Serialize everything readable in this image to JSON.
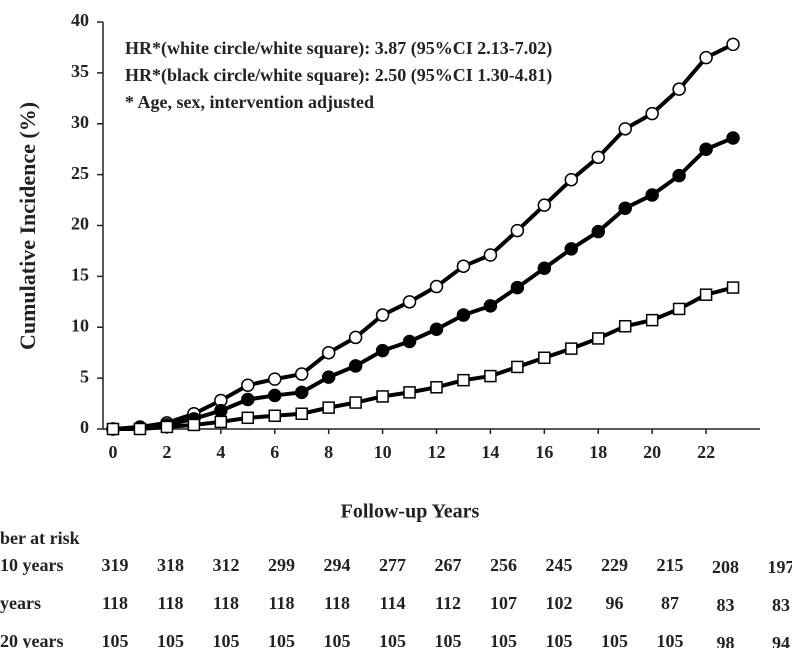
{
  "chart_data": {
    "type": "line",
    "ylabel": "Cumulative Incidence (%)",
    "xlabel": "Follow-up Years",
    "annotations": [
      "HR*(white circle/white square): 3.87 (95%CI 2.13-7.02)",
      "HR*(black circle/white square):  2.50 (95%CI 1.30-4.81)",
      "* Age, sex, intervention adjusted"
    ],
    "x": [
      0,
      1,
      2,
      3,
      4,
      5,
      6,
      7,
      8,
      9,
      10,
      11,
      12,
      13,
      14,
      15,
      16,
      17,
      18,
      19,
      20,
      21,
      22,
      23
    ],
    "series": [
      {
        "marker": "circle",
        "color": "#ffffff",
        "values": [
          0,
          0.2,
          0.6,
          1.5,
          2.8,
          4.3,
          4.9,
          5.4,
          7.5,
          9.0,
          11.2,
          12.5,
          14.0,
          16.0,
          17.1,
          19.5,
          22.0,
          24.5,
          26.7,
          29.5,
          31.0,
          33.4,
          36.5,
          37.8
        ]
      },
      {
        "marker": "circle",
        "color": "#000000",
        "values": [
          0,
          0.1,
          0.4,
          1.0,
          1.8,
          2.9,
          3.3,
          3.6,
          5.1,
          6.2,
          7.7,
          8.6,
          9.8,
          11.2,
          12.1,
          13.9,
          15.8,
          17.7,
          19.4,
          21.7,
          23.0,
          24.9,
          27.5,
          28.6
        ]
      },
      {
        "marker": "square",
        "color": "#ffffff",
        "values": [
          0,
          0.0,
          0.2,
          0.4,
          0.7,
          1.1,
          1.3,
          1.5,
          2.1,
          2.6,
          3.2,
          3.6,
          4.1,
          4.8,
          5.2,
          6.1,
          7.0,
          7.9,
          8.9,
          10.1,
          10.7,
          11.8,
          13.2,
          13.9
        ]
      }
    ],
    "xlim": [
      0,
      24
    ],
    "xticks": [
      0,
      2,
      4,
      6,
      8,
      10,
      12,
      14,
      16,
      18,
      20,
      22
    ],
    "ylim": [
      0,
      40
    ],
    "yticks": [
      0,
      5,
      10,
      15,
      20,
      25,
      30,
      35,
      40
    ],
    "risk_table": {
      "title": "ber at risk",
      "rows": [
        {
          "label": "10 years",
          "values": [
            "319",
            "318",
            "312",
            "299",
            "294",
            "277",
            "267",
            "256",
            "245",
            "229",
            "215",
            "208",
            "197"
          ]
        },
        {
          "label": "years",
          "values": [
            "118",
            "118",
            "118",
            "118",
            "118",
            "114",
            "112",
            "107",
            "102",
            "96",
            "87",
            "83",
            "83"
          ]
        },
        {
          "label": "20 years",
          "values": [
            "105",
            "105",
            "105",
            "105",
            "105",
            "105",
            "105",
            "105",
            "105",
            "105",
            "105",
            "98",
            "94"
          ]
        }
      ]
    }
  }
}
